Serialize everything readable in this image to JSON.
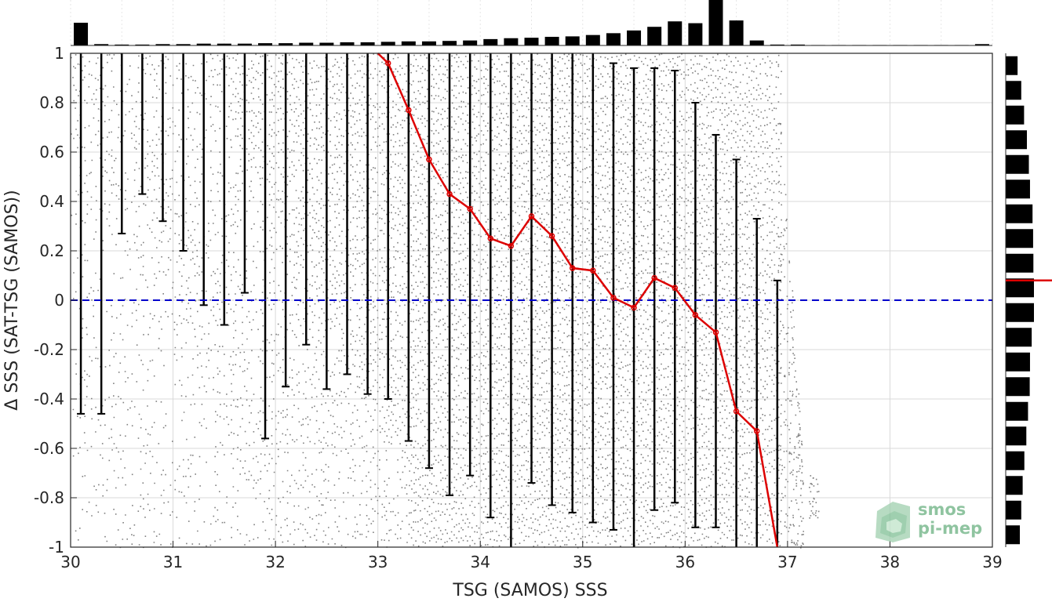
{
  "chart_data": {
    "type": "scatter",
    "xlabel": "TSG (SAMOS) SSS",
    "ylabel": "Δ SSS (SAT-TSG (SAMOS))",
    "xlim": [
      30,
      39
    ],
    "ylim": [
      -1,
      1
    ],
    "xticks": [
      30,
      31,
      32,
      33,
      34,
      35,
      36,
      37,
      38,
      39
    ],
    "yticks": [
      1,
      0.8,
      0.6,
      0.4,
      0.2,
      0,
      -0.2,
      -0.4,
      -0.6,
      -0.8,
      -1
    ],
    "ytick_labels": [
      "1",
      "0.8",
      "0.6",
      "0.4",
      "0.2",
      "0",
      "-0.2",
      "-0.4",
      "-0.6",
      "-0.8",
      "-1"
    ],
    "grid": true,
    "zero_line_color": "#0000cc",
    "median_color": "#dd0000",
    "scatter_color": "#808080",
    "bins": [
      30.1,
      30.3,
      30.5,
      30.7,
      30.9,
      31.1,
      31.3,
      31.5,
      31.7,
      31.9,
      32.1,
      32.3,
      32.5,
      32.7,
      32.9,
      33.1,
      33.3,
      33.5,
      33.7,
      33.9,
      34.1,
      34.3,
      34.5,
      34.7,
      34.9,
      35.1,
      35.3,
      35.5,
      35.7,
      35.9,
      36.1,
      36.3,
      36.5,
      36.7,
      36.9
    ],
    "errorbar_low": [
      -0.46,
      -0.46,
      0.27,
      0.43,
      0.32,
      0.2,
      -0.02,
      -0.1,
      0.03,
      -0.56,
      -0.35,
      -0.18,
      -0.36,
      -0.3,
      -0.38,
      -0.4,
      -0.57,
      -0.68,
      -0.79,
      -0.71,
      -0.88,
      -1.0,
      -0.74,
      -0.83,
      -0.86,
      -0.9,
      -0.93,
      -1.0,
      -0.85,
      -0.82,
      -0.92,
      -0.92,
      -1.0,
      -1.0,
      -1.0
    ],
    "errorbar_high": [
      1.0,
      1.0,
      1.0,
      1.0,
      1.0,
      1.0,
      1.0,
      1.0,
      1.0,
      1.0,
      1.0,
      1.0,
      1.0,
      1.0,
      1.0,
      1.0,
      1.0,
      1.0,
      1.0,
      1.0,
      1.0,
      1.0,
      1.0,
      1.0,
      1.0,
      1.0,
      0.96,
      0.94,
      0.94,
      0.93,
      0.8,
      0.67,
      0.57,
      0.33,
      0.08
    ],
    "median_x": [
      33.1,
      33.3,
      33.5,
      33.7,
      33.9,
      34.1,
      34.3,
      34.5,
      34.7,
      34.9,
      35.1,
      35.3,
      35.5,
      35.7,
      35.9,
      36.1,
      36.3,
      36.5,
      36.7,
      36.9
    ],
    "median_y": [
      0.96,
      0.77,
      0.57,
      0.43,
      0.37,
      0.25,
      0.22,
      0.34,
      0.26,
      0.13,
      0.12,
      0.01,
      -0.03,
      0.09,
      0.05,
      -0.06,
      -0.13,
      -0.45,
      -0.53,
      -1.0
    ],
    "top_histogram": {
      "x": [
        30.1,
        30.3,
        30.5,
        30.7,
        30.9,
        31.1,
        31.3,
        31.5,
        31.7,
        31.9,
        32.1,
        32.3,
        32.5,
        32.7,
        32.9,
        33.1,
        33.3,
        33.5,
        33.7,
        33.9,
        34.1,
        34.3,
        34.5,
        34.7,
        34.9,
        35.1,
        35.3,
        35.5,
        35.7,
        35.9,
        36.1,
        36.3,
        36.5,
        36.7,
        36.9,
        37.1,
        37.3,
        37.5,
        37.7,
        37.9,
        38.1,
        38.3,
        38.5,
        38.7,
        38.9
      ],
      "values": [
        0.5,
        0.03,
        0.02,
        0.02,
        0.03,
        0.03,
        0.04,
        0.04,
        0.04,
        0.05,
        0.05,
        0.06,
        0.06,
        0.07,
        0.07,
        0.08,
        0.09,
        0.09,
        0.1,
        0.11,
        0.14,
        0.16,
        0.17,
        0.19,
        0.2,
        0.23,
        0.27,
        0.33,
        0.41,
        0.53,
        0.49,
        1.0,
        0.55,
        0.11,
        0.02,
        0.02,
        0.01,
        0.01,
        0.01,
        0.01,
        0.01,
        0.01,
        0.01,
        0.01,
        0.03
      ]
    },
    "right_histogram": {
      "y": [
        0.95,
        0.85,
        0.75,
        0.65,
        0.55,
        0.45,
        0.35,
        0.25,
        0.15,
        0.05,
        -0.05,
        -0.15,
        -0.25,
        -0.35,
        -0.45,
        -0.55,
        -0.65,
        -0.75,
        -0.85,
        -0.95
      ],
      "values": [
        0.42,
        0.55,
        0.65,
        0.75,
        0.82,
        0.86,
        0.95,
        0.97,
        0.98,
        1.0,
        1.0,
        0.92,
        0.86,
        0.85,
        0.79,
        0.73,
        0.66,
        0.6,
        0.55,
        0.5
      ],
      "median_y": 0.08
    }
  },
  "logo": {
    "line1": "smos",
    "line2": "pi-mep"
  }
}
